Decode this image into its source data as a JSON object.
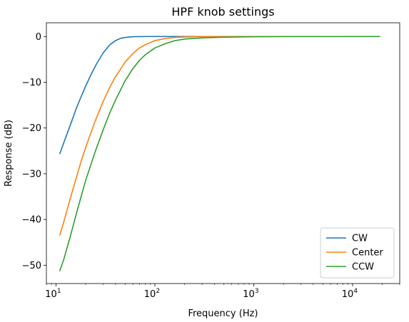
{
  "chart_data": {
    "type": "line",
    "title": "HPF knob settings",
    "xlabel": "Frequency (Hz)",
    "ylabel": "Response (dB)",
    "xscale": "log",
    "xlim": [
      8,
      30000
    ],
    "ylim": [
      -54,
      3
    ],
    "grid": false,
    "legend_position": "lower-right",
    "x_ticks": [
      {
        "value": 10,
        "base": "10",
        "exp": "1"
      },
      {
        "value": 100,
        "base": "10",
        "exp": "2"
      },
      {
        "value": 1000,
        "base": "10",
        "exp": "3"
      },
      {
        "value": 10000,
        "base": "10",
        "exp": "4"
      }
    ],
    "y_ticks": [
      {
        "value": 0,
        "label": "0"
      },
      {
        "value": -10,
        "label": "−10"
      },
      {
        "value": -20,
        "label": "−20"
      },
      {
        "value": -30,
        "label": "−30"
      },
      {
        "value": -40,
        "label": "−40"
      },
      {
        "value": -50,
        "label": "−50"
      }
    ],
    "series": [
      {
        "name": "CW",
        "color": "#1f77b4",
        "points": [
          [
            10.9,
            -25.7
          ],
          [
            12,
            -23.2
          ],
          [
            14,
            -19.3
          ],
          [
            16,
            -15.8
          ],
          [
            18,
            -13.1
          ],
          [
            20,
            -10.8
          ],
          [
            23,
            -8.0
          ],
          [
            26,
            -5.8
          ],
          [
            30,
            -3.6
          ],
          [
            35,
            -1.8
          ],
          [
            40,
            -0.9
          ],
          [
            45,
            -0.4
          ],
          [
            50,
            -0.2
          ],
          [
            60,
            -0.05
          ],
          [
            80,
            0
          ],
          [
            100,
            0
          ],
          [
            200,
            0
          ],
          [
            1000,
            0
          ],
          [
            10000,
            0
          ],
          [
            19000,
            0
          ]
        ]
      },
      {
        "name": "Center",
        "color": "#ff7f0e",
        "points": [
          [
            10.9,
            -43.5
          ],
          [
            12,
            -40.5
          ],
          [
            14,
            -35.3
          ],
          [
            16,
            -31.0
          ],
          [
            18,
            -27.2
          ],
          [
            20,
            -24.2
          ],
          [
            25,
            -18.4
          ],
          [
            30,
            -14.2
          ],
          [
            35,
            -11.1
          ],
          [
            40,
            -8.8
          ],
          [
            50,
            -5.6
          ],
          [
            60,
            -3.7
          ],
          [
            70,
            -2.5
          ],
          [
            80,
            -1.8
          ],
          [
            100,
            -0.9
          ],
          [
            130,
            -0.4
          ],
          [
            160,
            -0.2
          ],
          [
            200,
            -0.1
          ],
          [
            300,
            -0.03
          ],
          [
            500,
            0
          ],
          [
            1000,
            0
          ],
          [
            10000,
            0
          ],
          [
            19000,
            0
          ]
        ]
      },
      {
        "name": "CCW",
        "color": "#2ca02c",
        "points": [
          [
            10.9,
            -51.3
          ],
          [
            12,
            -48.7
          ],
          [
            14,
            -43.6
          ],
          [
            16,
            -38.9
          ],
          [
            18,
            -34.9
          ],
          [
            20,
            -31.4
          ],
          [
            25,
            -25.1
          ],
          [
            30,
            -20.4
          ],
          [
            35,
            -16.7
          ],
          [
            40,
            -13.9
          ],
          [
            50,
            -9.7
          ],
          [
            60,
            -7.0
          ],
          [
            70,
            -5.2
          ],
          [
            80,
            -4.0
          ],
          [
            100,
            -2.5
          ],
          [
            130,
            -1.5
          ],
          [
            160,
            -0.9
          ],
          [
            200,
            -0.55
          ],
          [
            300,
            -0.3
          ],
          [
            500,
            -0.15
          ],
          [
            1000,
            -0.05
          ],
          [
            2000,
            -0.01
          ],
          [
            10000,
            0
          ],
          [
            19000,
            0
          ]
        ]
      }
    ]
  }
}
